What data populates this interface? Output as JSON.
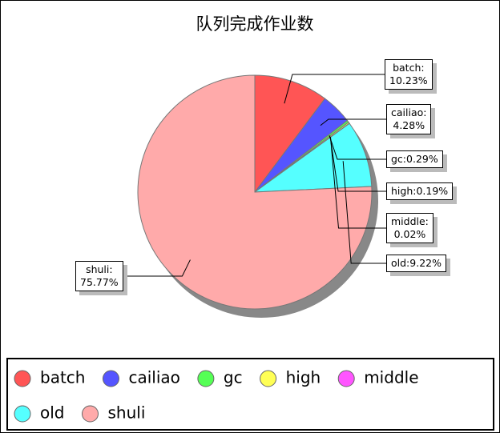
{
  "chart_data": {
    "type": "pie",
    "title": "队列完成作业数",
    "categories": [
      "batch",
      "cailiao",
      "gc",
      "high",
      "middle",
      "old",
      "shuli"
    ],
    "values": [
      10.23,
      4.28,
      0.29,
      0.19,
      0.02,
      9.22,
      75.77
    ],
    "value_labels": [
      "batch:\n10.23%",
      "cailiao:\n4.28%",
      "gc:0.29%",
      "high:0.19%",
      "middle:\n0.02%",
      "old:9.22%",
      "shuli:\n75.77%"
    ],
    "colors": [
      "#ff5555",
      "#5555ff",
      "#55ff55",
      "#ffff55",
      "#ff55ff",
      "#55ffff",
      "#ffaaaa"
    ],
    "legend": "bottom"
  }
}
